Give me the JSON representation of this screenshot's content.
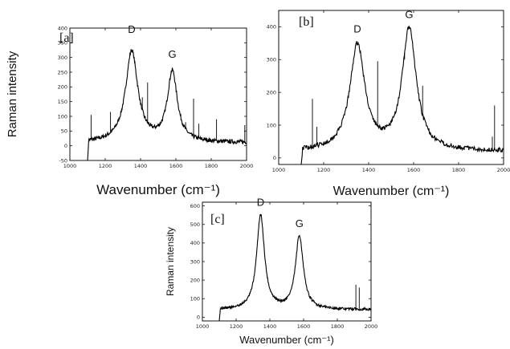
{
  "chart_data": [
    {
      "type": "line",
      "panel": "[a]",
      "xlabel": "Wavenumber (cm⁻¹)",
      "ylabel": "Raman intensity",
      "xlim": [
        1000,
        2000
      ],
      "ylim": [
        -50,
        400
      ],
      "xticks": [
        1000,
        1200,
        1400,
        1600,
        1800,
        2000
      ],
      "yticks": [
        -50,
        0,
        50,
        100,
        150,
        200,
        250,
        300,
        350,
        400
      ],
      "baseline": 10,
      "peaks": [
        {
          "label": "D",
          "x": 1350,
          "y": 365
        },
        {
          "label": "G",
          "x": 1580,
          "y": 280
        }
      ],
      "bands": [
        {
          "x": 1350,
          "amp": 310,
          "width": 42
        },
        {
          "x": 1580,
          "amp": 238,
          "width": 34
        }
      ],
      "spikes": [
        {
          "x": 1120,
          "y": 105
        },
        {
          "x": 1230,
          "y": 115
        },
        {
          "x": 1410,
          "y": 165
        },
        {
          "x": 1440,
          "y": 215
        },
        {
          "x": 1655,
          "y": 80
        },
        {
          "x": 1700,
          "y": 160
        },
        {
          "x": 1730,
          "y": 75
        },
        {
          "x": 1830,
          "y": 90
        },
        {
          "x": 1990,
          "y": 70
        }
      ],
      "x_start": 1100,
      "x_end": 2000
    },
    {
      "type": "line",
      "panel": "[b]",
      "xlabel": "Wavenumber (cm⁻¹)",
      "ylabel": "",
      "xlim": [
        1000,
        2000
      ],
      "ylim": [
        -20,
        450
      ],
      "xticks": [
        1000,
        1200,
        1400,
        1600,
        1800,
        2000
      ],
      "yticks": [
        0,
        100,
        200,
        300,
        400
      ],
      "baseline": 20,
      "peaks": [
        {
          "label": "D",
          "x": 1350,
          "y": 365
        },
        {
          "label": "G",
          "x": 1580,
          "y": 410
        }
      ],
      "bands": [
        {
          "x": 1350,
          "amp": 322,
          "width": 40
        },
        {
          "x": 1580,
          "amp": 370,
          "width": 38
        }
      ],
      "spikes": [
        {
          "x": 1150,
          "y": 180
        },
        {
          "x": 1170,
          "y": 95
        },
        {
          "x": 1440,
          "y": 295
        },
        {
          "x": 1560,
          "y": 300
        },
        {
          "x": 1640,
          "y": 220
        },
        {
          "x": 1950,
          "y": 65
        },
        {
          "x": 1960,
          "y": 160
        }
      ],
      "x_start": 1100,
      "x_end": 2000
    },
    {
      "type": "line",
      "panel": "[c]",
      "xlabel": "Wavenumber (cm⁻¹)",
      "ylabel": "Raman intensity",
      "xlim": [
        1000,
        2000
      ],
      "ylim": [
        -20,
        620
      ],
      "xticks": [
        1000,
        1200,
        1400,
        1600,
        1800,
        2000
      ],
      "yticks": [
        0,
        100,
        200,
        300,
        400,
        500,
        600
      ],
      "baseline": 40,
      "peaks": [
        {
          "label": "D",
          "x": 1345,
          "y": 570
        },
        {
          "label": "G",
          "x": 1575,
          "y": 455
        }
      ],
      "bands": [
        {
          "x": 1345,
          "amp": 510,
          "width": 28
        },
        {
          "x": 1575,
          "amp": 395,
          "width": 28
        }
      ],
      "spikes": [
        {
          "x": 1910,
          "y": 175
        },
        {
          "x": 1930,
          "y": 160
        }
      ],
      "x_start": 1100,
      "x_end": 2000
    }
  ]
}
